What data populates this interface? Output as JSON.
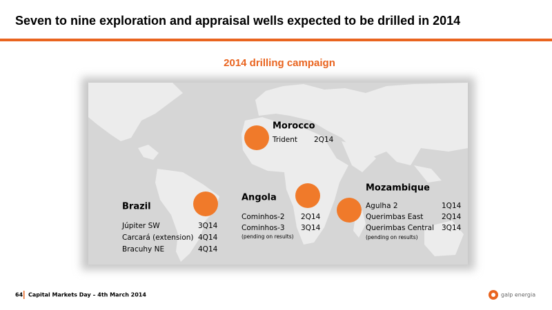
{
  "header": {
    "title": "Seven to nine exploration and appraisal wells expected to be drilled in 2014",
    "subtitle": "2014 drilling campaign"
  },
  "regions": [
    {
      "name": "Morocco",
      "wells": [
        {
          "name": "Trident",
          "date": "2Q14"
        }
      ]
    },
    {
      "name": "Brazil",
      "wells": [
        {
          "name": "Júpiter SW",
          "date": "3Q14"
        },
        {
          "name": "Carcará (extension)",
          "date": "4Q14"
        },
        {
          "name": "Bracuhy NE",
          "date": "4Q14"
        }
      ]
    },
    {
      "name": "Angola",
      "wells": [
        {
          "name": "Cominhos-2",
          "date": "2Q14"
        },
        {
          "name": "Cominhos-3",
          "date": "3Q14"
        }
      ],
      "note": "(pending on results)"
    },
    {
      "name": "Mozambique",
      "wells": [
        {
          "name": "Agulha 2",
          "date": "1Q14"
        },
        {
          "name": "Querimbas East",
          "date": "2Q14"
        },
        {
          "name": "Querimbas Central",
          "date": "3Q14"
        }
      ],
      "note": "(pending on results)"
    }
  ],
  "footer": {
    "page": "64",
    "text": "Capital Markets Day – 4th March 2014",
    "logo": "galp energia"
  }
}
